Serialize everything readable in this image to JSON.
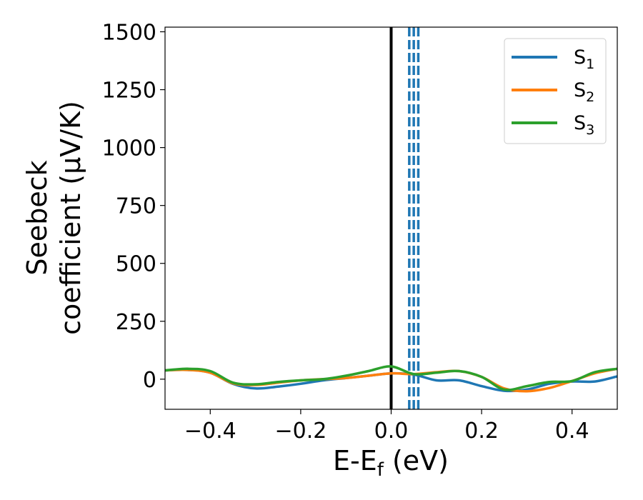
{
  "chart_data": {
    "type": "line",
    "title": "",
    "xlabel": {
      "base": "E-E",
      "sub": "f",
      "tail": " (eV)"
    },
    "ylabel": {
      "line1": "Seebeck",
      "line2": "coefficient  (μV/K)"
    },
    "xlim": [
      -0.5,
      0.5
    ],
    "ylim": [
      -130,
      1520
    ],
    "xticks": [
      -0.4,
      -0.2,
      0.0,
      0.2,
      0.4
    ],
    "xtick_labels": [
      "−0.4",
      "−0.2",
      "0.0",
      "0.2",
      "0.4"
    ],
    "yticks": [
      0,
      250,
      500,
      750,
      1000,
      1250,
      1500
    ],
    "ytick_labels": [
      "0",
      "250",
      "500",
      "750",
      "1000",
      "1250",
      "1500"
    ],
    "grid": false,
    "legend_position": "top-right",
    "reference_lines": [
      {
        "x": 0.0,
        "style": "solid",
        "color": "#000000"
      },
      {
        "x": 0.04,
        "style": "dashed",
        "color": "#1f77b4"
      },
      {
        "x": 0.05,
        "style": "dashed",
        "color": "#1f77b4"
      },
      {
        "x": 0.06,
        "style": "dashed",
        "color": "#1f77b4"
      }
    ],
    "x": [
      -0.5,
      -0.45,
      -0.4,
      -0.35,
      -0.3,
      -0.25,
      -0.2,
      -0.15,
      -0.1,
      -0.05,
      0.0,
      0.05,
      0.1,
      0.15,
      0.2,
      0.25,
      0.3,
      0.35,
      0.4,
      0.45,
      0.5
    ],
    "series": [
      {
        "name": "S",
        "sub": "1",
        "color": "#1f77b4",
        "values": [
          38,
          40,
          28,
          -20,
          -40,
          -32,
          -20,
          -5,
          5,
          15,
          25,
          20,
          -5,
          -5,
          -30,
          -50,
          -45,
          -20,
          -10,
          -10,
          12
        ]
      },
      {
        "name": "S",
        "sub": "2",
        "color": "#ff7f0e",
        "values": [
          38,
          40,
          28,
          -18,
          -25,
          -15,
          -5,
          0,
          5,
          15,
          25,
          22,
          30,
          35,
          10,
          -40,
          -52,
          -38,
          -8,
          25,
          45
        ]
      },
      {
        "name": "S",
        "sub": "3",
        "color": "#2ca02c",
        "values": [
          38,
          45,
          35,
          -15,
          -22,
          -12,
          -5,
          0,
          15,
          35,
          55,
          22,
          28,
          35,
          10,
          -45,
          -30,
          -12,
          -8,
          30,
          45
        ]
      }
    ]
  }
}
